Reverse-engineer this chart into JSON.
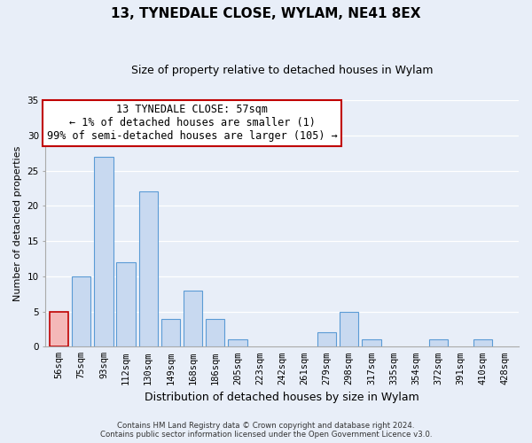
{
  "title": "13, TYNEDALE CLOSE, WYLAM, NE41 8EX",
  "subtitle": "Size of property relative to detached houses in Wylam",
  "xlabel": "Distribution of detached houses by size in Wylam",
  "ylabel": "Number of detached properties",
  "bin_labels": [
    "56sqm",
    "75sqm",
    "93sqm",
    "112sqm",
    "130sqm",
    "149sqm",
    "168sqm",
    "186sqm",
    "205sqm",
    "223sqm",
    "242sqm",
    "261sqm",
    "279sqm",
    "298sqm",
    "317sqm",
    "335sqm",
    "354sqm",
    "372sqm",
    "391sqm",
    "410sqm",
    "428sqm"
  ],
  "bar_heights": [
    5,
    10,
    27,
    12,
    22,
    4,
    8,
    4,
    1,
    0,
    0,
    0,
    2,
    5,
    1,
    0,
    0,
    1,
    0,
    1,
    0
  ],
  "bar_color": "#c8d9f0",
  "bar_edge_color": "#5b9bd5",
  "highlight_bar_index": 0,
  "highlight_bar_color": "#f4b8b8",
  "highlight_bar_edge_color": "#c00000",
  "annotation_text": "13 TYNEDALE CLOSE: 57sqm\n← 1% of detached houses are smaller (1)\n99% of semi-detached houses are larger (105) →",
  "annotation_box_color": "#ffffff",
  "annotation_box_edge_color": "#c00000",
  "ylim": [
    0,
    35
  ],
  "yticks": [
    0,
    5,
    10,
    15,
    20,
    25,
    30,
    35
  ],
  "footer_line1": "Contains HM Land Registry data © Crown copyright and database right 2024.",
  "footer_line2": "Contains public sector information licensed under the Open Government Licence v3.0.",
  "bg_color": "#e8eef8",
  "grid_color": "#ffffff",
  "title_fontsize": 11,
  "subtitle_fontsize": 9,
  "ylabel_fontsize": 8,
  "xlabel_fontsize": 9,
  "tick_fontsize": 7.5,
  "annot_fontsize": 8.5
}
